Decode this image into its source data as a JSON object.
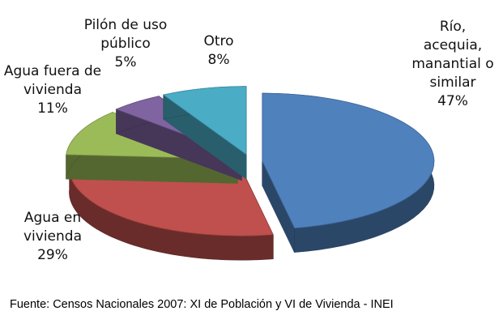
{
  "chart_data": {
    "type": "pie3d",
    "categories": [
      "Río, acequia, manantial o similar",
      "Agua en vivienda",
      "Agua fuera de vivienda",
      "Pilón de uso público",
      "Otro"
    ],
    "values": [
      47,
      29,
      11,
      5,
      8
    ],
    "value_labels": [
      "47%",
      "29%",
      "11%",
      "5%",
      "8%"
    ],
    "colors": [
      "#4f81bd",
      "#c0504d",
      "#9bbb59",
      "#8064a2",
      "#4bacc6"
    ],
    "source": "Fuente: Censos Nacionales 2007: XI de Población  y VI de Vivienda - INEI"
  }
}
